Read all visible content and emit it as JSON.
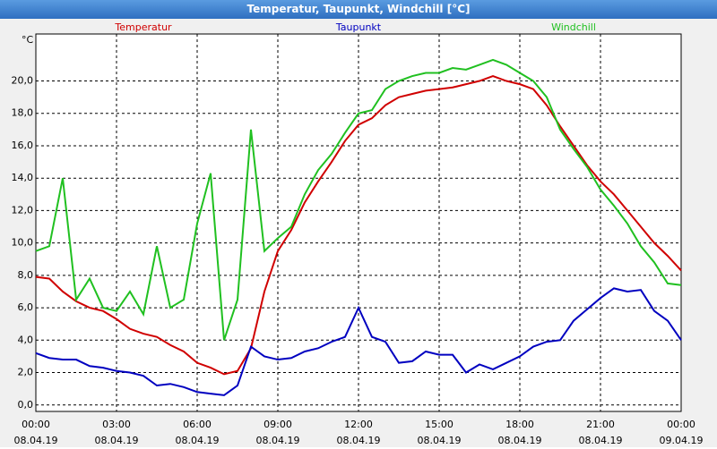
{
  "window_title": "Temperatur, Taupunkt, Windchill [°C]",
  "chart_data": {
    "type": "line",
    "y_unit": "°C",
    "x": [
      0,
      0.5,
      1,
      1.5,
      2,
      2.5,
      3,
      3.5,
      4,
      4.5,
      5,
      5.5,
      6,
      6.5,
      7,
      7.5,
      8,
      8.5,
      9,
      9.5,
      10,
      10.5,
      11,
      11.5,
      12,
      12.5,
      13,
      13.5,
      14,
      14.5,
      15,
      15.5,
      16,
      16.5,
      17,
      17.5,
      18,
      18.5,
      19,
      19.5,
      20,
      20.5,
      21,
      21.5,
      22,
      22.5,
      23,
      23.5,
      24
    ],
    "series": [
      {
        "name": "Temperatur",
        "color": "#d00000",
        "values": [
          7.9,
          7.8,
          7.0,
          6.4,
          6.0,
          5.8,
          5.3,
          4.7,
          4.4,
          4.2,
          3.7,
          3.3,
          2.6,
          2.3,
          1.9,
          2.1,
          3.5,
          7.0,
          9.5,
          10.8,
          12.5,
          13.8,
          15.0,
          16.3,
          17.3,
          17.7,
          18.5,
          19.0,
          19.2,
          19.4,
          19.5,
          19.6,
          19.8,
          20.0,
          20.3,
          20.0,
          19.8,
          19.5,
          18.5,
          17.2,
          16.0,
          14.8,
          13.8,
          13.0,
          12.0,
          11.0,
          10.0,
          9.2,
          8.3
        ]
      },
      {
        "name": "Taupunkt",
        "color": "#0000c0",
        "values": [
          3.2,
          2.9,
          2.8,
          2.8,
          2.4,
          2.3,
          2.1,
          2.0,
          1.8,
          1.2,
          1.3,
          1.1,
          0.8,
          0.7,
          0.6,
          1.2,
          3.6,
          3.0,
          2.8,
          2.9,
          3.3,
          3.5,
          3.9,
          4.2,
          6.0,
          4.2,
          3.9,
          2.6,
          2.7,
          3.3,
          3.1,
          3.1,
          2.0,
          2.5,
          2.2,
          2.6,
          3.0,
          3.6,
          3.9,
          4.0,
          5.2,
          5.9,
          6.6,
          7.2,
          7.0,
          7.1,
          5.8,
          5.2,
          4.0
        ]
      },
      {
        "name": "Windchill",
        "color": "#20c020",
        "values": [
          9.5,
          9.8,
          14.0,
          6.5,
          7.8,
          6.0,
          5.8,
          7.0,
          5.6,
          9.8,
          6.0,
          6.5,
          11.2,
          14.3,
          4.0,
          6.5,
          17.0,
          9.5,
          10.3,
          11.0,
          13.0,
          14.5,
          15.5,
          16.8,
          18.0,
          18.2,
          19.5,
          20.0,
          20.3,
          20.5,
          20.5,
          20.8,
          20.7,
          21.0,
          21.3,
          21.0,
          20.5,
          20.0,
          19.0,
          17.0,
          15.8,
          14.7,
          13.3,
          12.3,
          11.2,
          9.8,
          8.8,
          7.5,
          7.4
        ]
      }
    ],
    "xlim": [
      0,
      24
    ],
    "xticks": [
      {
        "value": 0,
        "label": "00:00\n08.04.19"
      },
      {
        "value": 3,
        "label": "03:00\n08.04.19"
      },
      {
        "value": 6,
        "label": "06:00\n08.04.19"
      },
      {
        "value": 9,
        "label": "09:00\n08.04.19"
      },
      {
        "value": 12,
        "label": "12:00\n08.04.19"
      },
      {
        "value": 15,
        "label": "15:00\n08.04.19"
      },
      {
        "value": 18,
        "label": "18:00\n08.04.19"
      },
      {
        "value": 21,
        "label": "21:00\n08.04.19"
      },
      {
        "value": 24,
        "label": "00:00\n09.04.19"
      }
    ],
    "ylim": [
      -0.4,
      22.9
    ],
    "yticks": [
      {
        "value": 0,
        "label": "0,0"
      },
      {
        "value": 2,
        "label": "2,0"
      },
      {
        "value": 4,
        "label": "4,0"
      },
      {
        "value": 6,
        "label": "6,0"
      },
      {
        "value": 8,
        "label": "8,0"
      },
      {
        "value": 10,
        "label": "10,0"
      },
      {
        "value": 12,
        "label": "12,0"
      },
      {
        "value": 14,
        "label": "14,0"
      },
      {
        "value": 16,
        "label": "16,0"
      },
      {
        "value": 18,
        "label": "18,0"
      },
      {
        "value": 20,
        "label": "20,0"
      }
    ],
    "grid": true
  }
}
